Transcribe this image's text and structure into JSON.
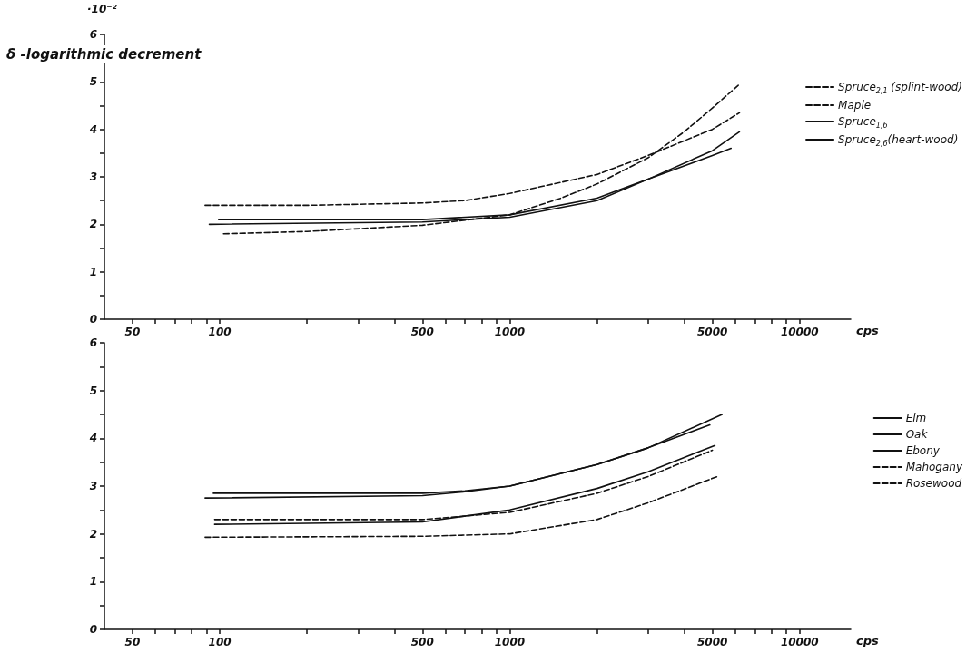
{
  "chart_data": [
    {
      "type": "line",
      "ylabel": "δ -logarithmic decrement",
      "xlabel": "cps",
      "annotations": [
        "·10⁻²"
      ],
      "log": "x",
      "xlim": [
        40,
        15000
      ],
      "ylim": [
        0,
        6
      ],
      "xticks": [
        50,
        {
          "value": 60,
          "label": null
        },
        {
          "value": 70,
          "label": null
        },
        {
          "value": 80,
          "label": null
        },
        {
          "value": 90,
          "label": null
        },
        100,
        {
          "value": 200,
          "label": null
        },
        {
          "value": 300,
          "label": null
        },
        {
          "value": 400,
          "label": null
        },
        500,
        {
          "value": 600,
          "label": null
        },
        {
          "value": 700,
          "label": null
        },
        {
          "value": 800,
          "label": null
        },
        {
          "value": 900,
          "label": null
        },
        1000,
        {
          "value": 2000,
          "label": null
        },
        {
          "value": 3000,
          "label": null
        },
        {
          "value": 4000,
          "label": null
        },
        5000,
        {
          "value": 6000,
          "label": null
        },
        {
          "value": 7000,
          "label": null
        },
        {
          "value": 8000,
          "label": null
        },
        {
          "value": 9000,
          "label": null
        },
        10000
      ],
      "yticks": [
        0,
        {
          "value": 0.5,
          "label": null
        },
        1,
        {
          "value": 1.5,
          "label": null
        },
        2,
        {
          "value": 2.5,
          "label": null
        },
        3,
        {
          "value": 3.5,
          "label": null
        },
        4,
        {
          "value": 4.5,
          "label": null
        },
        5,
        {
          "value": 5.5,
          "label": null
        },
        6
      ],
      "grid": false,
      "legend": "right",
      "marker": "none",
      "series": [
        {
          "name": "Spruce$_{2,1}$ (splint-wood)",
          "color": "#111111",
          "line_style": "dashed",
          "x": [
            103,
            200,
            500,
            1000,
            1500,
            2000,
            3000,
            4000,
            5000,
            6200
          ],
          "values": [
            1.8,
            1.85,
            1.98,
            2.2,
            2.55,
            2.85,
            3.4,
            3.95,
            4.45,
            4.95
          ]
        },
        {
          "name": "Maple",
          "color": "#111111",
          "line_style": "dashed",
          "x": [
            89,
            200,
            500,
            700,
            1000,
            2000,
            3000,
            5000,
            6200
          ],
          "values": [
            2.4,
            2.4,
            2.45,
            2.5,
            2.65,
            3.05,
            3.45,
            4.0,
            4.35
          ]
        },
        {
          "name": "Spruce$_{1,6}$",
          "color": "#111111",
          "line_style": "solid",
          "x": [
            92,
            500,
            1000,
            2000,
            3000,
            5000,
            6200
          ],
          "values": [
            2.0,
            2.05,
            2.15,
            2.5,
            2.95,
            3.55,
            3.95
          ]
        },
        {
          "name": "Spruce$_{2,6}$(heart-wood)",
          "color": "#111111",
          "line_style": "solid",
          "x": [
            99,
            500,
            1000,
            2000,
            3000,
            5000,
            5800
          ],
          "values": [
            2.1,
            2.1,
            2.2,
            2.55,
            2.95,
            3.45,
            3.6
          ]
        }
      ]
    },
    {
      "type": "line",
      "xlabel": "cps",
      "log": "x",
      "xlim": [
        40,
        15000
      ],
      "ylim": [
        0,
        6
      ],
      "xticks": [
        50,
        {
          "value": 60,
          "label": null
        },
        {
          "value": 70,
          "label": null
        },
        {
          "value": 80,
          "label": null
        },
        {
          "value": 90,
          "label": null
        },
        100,
        {
          "value": 200,
          "label": null
        },
        {
          "value": 300,
          "label": null
        },
        {
          "value": 400,
          "label": null
        },
        500,
        {
          "value": 600,
          "label": null
        },
        {
          "value": 700,
          "label": null
        },
        {
          "value": 800,
          "label": null
        },
        {
          "value": 900,
          "label": null
        },
        1000,
        {
          "value": 2000,
          "label": null
        },
        {
          "value": 3000,
          "label": null
        },
        {
          "value": 4000,
          "label": null
        },
        5000,
        {
          "value": 6000,
          "label": null
        },
        {
          "value": 7000,
          "label": null
        },
        {
          "value": 8000,
          "label": null
        },
        {
          "value": 9000,
          "label": null
        },
        10000
      ],
      "yticks": [
        0,
        {
          "value": 0.5,
          "label": null
        },
        1,
        {
          "value": 1.5,
          "label": null
        },
        2,
        {
          "value": 2.5,
          "label": null
        },
        3,
        {
          "value": 3.5,
          "label": null
        },
        4,
        {
          "value": 4.5,
          "label": null
        },
        5,
        {
          "value": 5.5,
          "label": null
        },
        6
      ],
      "grid": false,
      "legend": "right",
      "marker": "none",
      "series": [
        {
          "name": "Elm",
          "color": "#111111",
          "line_style": "solid",
          "x": [
            95,
            500,
            700,
            1000,
            2000,
            3000,
            5400
          ],
          "values": [
            2.85,
            2.85,
            2.9,
            3.0,
            3.45,
            3.8,
            4.5
          ]
        },
        {
          "name": "Oak",
          "color": "#111111",
          "line_style": "solid",
          "x": [
            89,
            500,
            700,
            1000,
            2000,
            3000,
            4900
          ],
          "values": [
            2.75,
            2.8,
            2.88,
            3.0,
            3.45,
            3.8,
            4.28
          ]
        },
        {
          "name": "Ebony",
          "color": "#111111",
          "line_style": "solid",
          "x": [
            96,
            500,
            1000,
            2000,
            3000,
            5100
          ],
          "values": [
            2.2,
            2.25,
            2.5,
            2.95,
            3.3,
            3.85
          ]
        },
        {
          "name": "Mahogany",
          "color": "#111111",
          "line_style": "dashed",
          "x": [
            96,
            500,
            1000,
            2000,
            3000,
            5000
          ],
          "values": [
            2.3,
            2.3,
            2.45,
            2.85,
            3.2,
            3.75
          ]
        },
        {
          "name": "Rosewood",
          "color": "#111111",
          "line_style": "dashed",
          "x": [
            89,
            500,
            1000,
            2000,
            3000,
            5200
          ],
          "values": [
            1.93,
            1.95,
            2.0,
            2.3,
            2.65,
            3.2
          ]
        }
      ]
    }
  ]
}
